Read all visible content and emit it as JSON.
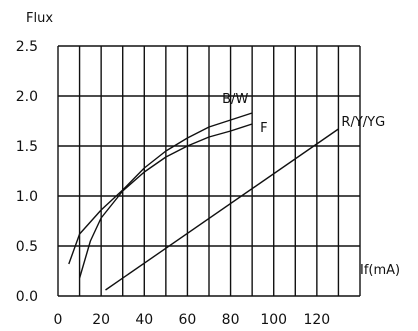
{
  "chart_data": {
    "type": "line",
    "ylabel": "Flux",
    "xlabel": "If(mA)",
    "xlim": [
      0,
      140
    ],
    "ylim": [
      0,
      2.5
    ],
    "x_ticks": [
      0,
      20,
      40,
      60,
      80,
      100,
      120
    ],
    "y_ticks": [
      0.0,
      0.5,
      1.0,
      1.5,
      2.0,
      2.5
    ],
    "x_tick_labels": [
      "0",
      "20",
      "40",
      "60",
      "80",
      "100",
      "120"
    ],
    "y_tick_labels": [
      "0.0",
      "0.5",
      "1.0",
      "1.5",
      "2.0",
      "2.5"
    ],
    "grid": true,
    "series": [
      {
        "name": "B/W",
        "color": "#111111",
        "points": [
          [
            5,
            0.32
          ],
          [
            10,
            0.62
          ],
          [
            20,
            0.86
          ],
          [
            30,
            1.06
          ],
          [
            40,
            1.28
          ],
          [
            50,
            1.45
          ],
          [
            60,
            1.58
          ],
          [
            70,
            1.69
          ],
          [
            80,
            1.76
          ],
          [
            90,
            1.83
          ]
        ]
      },
      {
        "name": "F",
        "color": "#111111",
        "points": [
          [
            10,
            0.18
          ],
          [
            15,
            0.55
          ],
          [
            20,
            0.78
          ],
          [
            30,
            1.05
          ],
          [
            40,
            1.24
          ],
          [
            50,
            1.39
          ],
          [
            60,
            1.5
          ],
          [
            70,
            1.59
          ],
          [
            80,
            1.65
          ],
          [
            90,
            1.72
          ]
        ]
      },
      {
        "name": "R/Y/YG",
        "color": "#111111",
        "points": [
          [
            22,
            0.06
          ],
          [
            130,
            1.67
          ]
        ]
      }
    ]
  }
}
